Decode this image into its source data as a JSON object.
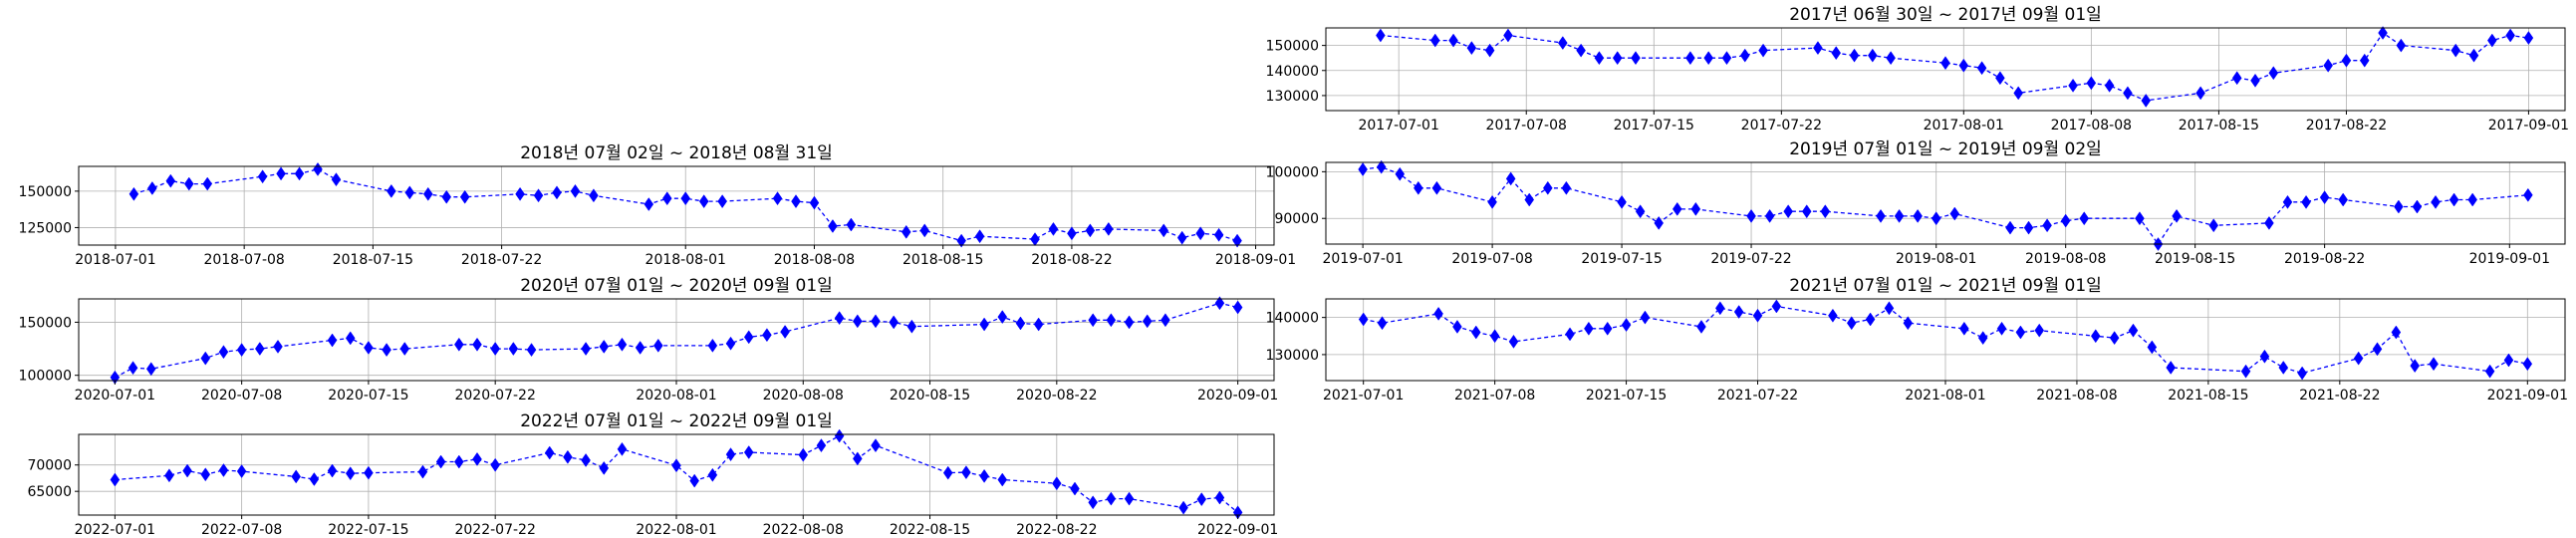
{
  "colors": {
    "series": "#0000ff",
    "grid": "#b0b0b0",
    "frame": "#000000"
  },
  "chart_data": [
    {
      "type": "line",
      "title": "2017년 06월 30일 ~ 2017년 09월 01일",
      "marker": "diamond",
      "grid": true,
      "ylim": [
        124000,
        157000
      ],
      "yticks": [
        130000,
        140000,
        150000
      ],
      "x_range": [
        "2017-06-27",
        "2017-09-03"
      ],
      "xticks": [
        "2017-07-01",
        "2017-07-08",
        "2017-07-15",
        "2017-07-22",
        "2017-08-01",
        "2017-08-08",
        "2017-08-15",
        "2017-08-22",
        "2017-09-01"
      ],
      "x": [
        "2017-06-30",
        "2017-07-03",
        "2017-07-04",
        "2017-07-05",
        "2017-07-06",
        "2017-07-07",
        "2017-07-10",
        "2017-07-11",
        "2017-07-12",
        "2017-07-13",
        "2017-07-14",
        "2017-07-17",
        "2017-07-18",
        "2017-07-19",
        "2017-07-20",
        "2017-07-21",
        "2017-07-24",
        "2017-07-25",
        "2017-07-26",
        "2017-07-27",
        "2017-07-28",
        "2017-07-31",
        "2017-08-01",
        "2017-08-02",
        "2017-08-03",
        "2017-08-04",
        "2017-08-07",
        "2017-08-08",
        "2017-08-09",
        "2017-08-10",
        "2017-08-11",
        "2017-08-14",
        "2017-08-16",
        "2017-08-17",
        "2017-08-18",
        "2017-08-21",
        "2017-08-22",
        "2017-08-23",
        "2017-08-24",
        "2017-08-25",
        "2017-08-28",
        "2017-08-29",
        "2017-08-30",
        "2017-08-31",
        "2017-09-01"
      ],
      "values": [
        154000,
        152000,
        152000,
        149000,
        148000,
        154000,
        151000,
        148000,
        145000,
        145000,
        145000,
        145000,
        145000,
        145000,
        146000,
        148000,
        149000,
        147000,
        146000,
        146000,
        145000,
        143000,
        142000,
        141000,
        137000,
        131000,
        134000,
        135000,
        134000,
        131000,
        128000,
        131000,
        137000,
        136000,
        139000,
        142000,
        144000,
        144000,
        155000,
        150000,
        148000,
        146000,
        152000,
        154000,
        153000
      ]
    },
    {
      "type": "line",
      "title": "2018년 07월 02일 ~ 2018년 08월 31일",
      "marker": "diamond",
      "grid": true,
      "ylim": [
        113000,
        167000
      ],
      "yticks": [
        125000,
        150000
      ],
      "x_range": [
        "2018-06-29",
        "2018-09-02"
      ],
      "xticks": [
        "2018-07-01",
        "2018-07-08",
        "2018-07-15",
        "2018-07-22",
        "2018-08-01",
        "2018-08-08",
        "2018-08-15",
        "2018-08-22",
        "2018-09-01"
      ],
      "x": [
        "2018-07-02",
        "2018-07-03",
        "2018-07-04",
        "2018-07-05",
        "2018-07-06",
        "2018-07-09",
        "2018-07-10",
        "2018-07-11",
        "2018-07-12",
        "2018-07-13",
        "2018-07-16",
        "2018-07-17",
        "2018-07-18",
        "2018-07-19",
        "2018-07-20",
        "2018-07-23",
        "2018-07-24",
        "2018-07-25",
        "2018-07-26",
        "2018-07-27",
        "2018-07-30",
        "2018-07-31",
        "2018-08-01",
        "2018-08-02",
        "2018-08-03",
        "2018-08-06",
        "2018-08-07",
        "2018-08-08",
        "2018-08-09",
        "2018-08-10",
        "2018-08-13",
        "2018-08-14",
        "2018-08-16",
        "2018-08-17",
        "2018-08-20",
        "2018-08-21",
        "2018-08-22",
        "2018-08-23",
        "2018-08-24",
        "2018-08-27",
        "2018-08-28",
        "2018-08-29",
        "2018-08-30",
        "2018-08-31"
      ],
      "values": [
        148000,
        152000,
        157000,
        155000,
        155000,
        160000,
        162000,
        162000,
        165000,
        158000,
        150000,
        149000,
        148000,
        146000,
        146000,
        148000,
        147000,
        149000,
        150000,
        147000,
        141000,
        145000,
        145000,
        143000,
        143000,
        145000,
        143000,
        142000,
        126000,
        127000,
        122000,
        123000,
        116000,
        119000,
        117000,
        124000,
        121000,
        123000,
        124000,
        123000,
        118000,
        121000,
        120000,
        116000
      ]
    },
    {
      "type": "line",
      "title": "2019년 07월 01일 ~ 2019년 09월 02일",
      "marker": "diamond",
      "grid": true,
      "ylim": [
        84500,
        102000
      ],
      "yticks": [
        90000,
        100000
      ],
      "x_range": [
        "2019-06-29",
        "2019-09-04"
      ],
      "xticks": [
        "2019-07-01",
        "2019-07-08",
        "2019-07-15",
        "2019-07-22",
        "2019-08-01",
        "2019-08-08",
        "2019-08-15",
        "2019-08-22",
        "2019-09-01"
      ],
      "x": [
        "2019-07-01",
        "2019-07-02",
        "2019-07-03",
        "2019-07-04",
        "2019-07-05",
        "2019-07-08",
        "2019-07-09",
        "2019-07-10",
        "2019-07-11",
        "2019-07-12",
        "2019-07-15",
        "2019-07-16",
        "2019-07-17",
        "2019-07-18",
        "2019-07-19",
        "2019-07-22",
        "2019-07-23",
        "2019-07-24",
        "2019-07-25",
        "2019-07-26",
        "2019-07-29",
        "2019-07-30",
        "2019-07-31",
        "2019-08-01",
        "2019-08-02",
        "2019-08-05",
        "2019-08-06",
        "2019-08-07",
        "2019-08-08",
        "2019-08-09",
        "2019-08-12",
        "2019-08-13",
        "2019-08-14",
        "2019-08-16",
        "2019-08-19",
        "2019-08-20",
        "2019-08-21",
        "2019-08-22",
        "2019-08-23",
        "2019-08-26",
        "2019-08-27",
        "2019-08-28",
        "2019-08-29",
        "2019-08-30",
        "2019-09-02"
      ],
      "values": [
        100500,
        101000,
        99500,
        96500,
        96500,
        93500,
        98500,
        94000,
        96500,
        96500,
        93500,
        91500,
        89000,
        92000,
        92000,
        90500,
        90500,
        91500,
        91500,
        91500,
        90500,
        90500,
        90500,
        90000,
        91000,
        88000,
        88000,
        88500,
        89500,
        90000,
        90000,
        84500,
        90500,
        88500,
        89000,
        93500,
        93500,
        94500,
        94000,
        92500,
        92500,
        93500,
        94000,
        94000,
        95000
      ]
    },
    {
      "type": "line",
      "title": "2020년 07월 01일 ~ 2020년 09월 01일",
      "marker": "diamond",
      "grid": true,
      "ylim": [
        95000,
        172000
      ],
      "yticks": [
        100000,
        150000
      ],
      "x_range": [
        "2020-06-29",
        "2020-09-03"
      ],
      "xticks": [
        "2020-07-01",
        "2020-07-08",
        "2020-07-15",
        "2020-07-22",
        "2020-08-01",
        "2020-08-08",
        "2020-08-15",
        "2020-08-22",
        "2020-09-01"
      ],
      "x": [
        "2020-07-01",
        "2020-07-02",
        "2020-07-03",
        "2020-07-06",
        "2020-07-07",
        "2020-07-08",
        "2020-07-09",
        "2020-07-10",
        "2020-07-13",
        "2020-07-14",
        "2020-07-15",
        "2020-07-16",
        "2020-07-17",
        "2020-07-20",
        "2020-07-21",
        "2020-07-22",
        "2020-07-23",
        "2020-07-24",
        "2020-07-27",
        "2020-07-28",
        "2020-07-29",
        "2020-07-30",
        "2020-07-31",
        "2020-08-03",
        "2020-08-04",
        "2020-08-05",
        "2020-08-06",
        "2020-08-07",
        "2020-08-10",
        "2020-08-11",
        "2020-08-12",
        "2020-08-13",
        "2020-08-14",
        "2020-08-18",
        "2020-08-19",
        "2020-08-20",
        "2020-08-21",
        "2020-08-24",
        "2020-08-25",
        "2020-08-26",
        "2020-08-27",
        "2020-08-28",
        "2020-08-31",
        "2020-09-01"
      ],
      "values": [
        98000,
        107000,
        106000,
        116000,
        122000,
        124000,
        125000,
        127000,
        133000,
        135000,
        126000,
        124000,
        125000,
        129000,
        129000,
        125000,
        125000,
        124000,
        125000,
        127000,
        129000,
        126000,
        128000,
        128000,
        130000,
        136000,
        138000,
        141000,
        154000,
        151000,
        151000,
        150000,
        146000,
        148000,
        155000,
        149000,
        148000,
        152000,
        152000,
        150000,
        151000,
        152000,
        168000,
        164000
      ]
    },
    {
      "type": "line",
      "title": "2021년 07월 01일 ~ 2021년 09월 01일",
      "marker": "diamond",
      "grid": true,
      "ylim": [
        123000,
        145000
      ],
      "yticks": [
        130000,
        140000
      ],
      "x_range": [
        "2021-06-29",
        "2021-09-03"
      ],
      "xticks": [
        "2021-07-01",
        "2021-07-08",
        "2021-07-15",
        "2021-07-22",
        "2021-08-01",
        "2021-08-08",
        "2021-08-15",
        "2021-08-22",
        "2021-09-01"
      ],
      "x": [
        "2021-07-01",
        "2021-07-02",
        "2021-07-05",
        "2021-07-06",
        "2021-07-07",
        "2021-07-08",
        "2021-07-09",
        "2021-07-12",
        "2021-07-13",
        "2021-07-14",
        "2021-07-15",
        "2021-07-16",
        "2021-07-19",
        "2021-07-20",
        "2021-07-21",
        "2021-07-22",
        "2021-07-23",
        "2021-07-26",
        "2021-07-27",
        "2021-07-28",
        "2021-07-29",
        "2021-07-30",
        "2021-08-02",
        "2021-08-03",
        "2021-08-04",
        "2021-08-05",
        "2021-08-06",
        "2021-08-09",
        "2021-08-10",
        "2021-08-11",
        "2021-08-12",
        "2021-08-13",
        "2021-08-17",
        "2021-08-18",
        "2021-08-19",
        "2021-08-20",
        "2021-08-23",
        "2021-08-24",
        "2021-08-25",
        "2021-08-26",
        "2021-08-27",
        "2021-08-30",
        "2021-08-31",
        "2021-09-01"
      ],
      "values": [
        139500,
        138500,
        141000,
        137500,
        136000,
        135000,
        133500,
        135500,
        137000,
        137000,
        138000,
        140000,
        137500,
        142500,
        141500,
        140500,
        143000,
        140500,
        138500,
        139500,
        142500,
        138500,
        137000,
        134500,
        137000,
        136000,
        136500,
        135000,
        134500,
        136500,
        132000,
        126500,
        125500,
        129500,
        126500,
        125000,
        129000,
        131500,
        136000,
        127000,
        127500,
        125500,
        128500,
        127500
      ]
    },
    {
      "type": "line",
      "title": "2022년 07월 01일 ~ 2022년 09월 01일",
      "marker": "diamond",
      "grid": true,
      "ylim": [
        60500,
        75800
      ],
      "yticks": [
        65000,
        70000
      ],
      "x_range": [
        "2022-06-29",
        "2022-09-03"
      ],
      "xticks": [
        "2022-07-01",
        "2022-07-08",
        "2022-07-15",
        "2022-07-22",
        "2022-08-01",
        "2022-08-08",
        "2022-08-15",
        "2022-08-22",
        "2022-09-01"
      ],
      "x": [
        "2022-07-01",
        "2022-07-04",
        "2022-07-05",
        "2022-07-06",
        "2022-07-07",
        "2022-07-08",
        "2022-07-11",
        "2022-07-12",
        "2022-07-13",
        "2022-07-14",
        "2022-07-15",
        "2022-07-18",
        "2022-07-19",
        "2022-07-20",
        "2022-07-21",
        "2022-07-22",
        "2022-07-25",
        "2022-07-26",
        "2022-07-27",
        "2022-07-28",
        "2022-07-29",
        "2022-08-01",
        "2022-08-02",
        "2022-08-03",
        "2022-08-04",
        "2022-08-05",
        "2022-08-08",
        "2022-08-09",
        "2022-08-10",
        "2022-08-11",
        "2022-08-12",
        "2022-08-16",
        "2022-08-17",
        "2022-08-18",
        "2022-08-19",
        "2022-08-22",
        "2022-08-23",
        "2022-08-24",
        "2022-08-25",
        "2022-08-26",
        "2022-08-29",
        "2022-08-30",
        "2022-08-31",
        "2022-09-01"
      ],
      "values": [
        67200,
        68000,
        68900,
        68200,
        69000,
        68800,
        67800,
        67300,
        68900,
        68400,
        68500,
        68700,
        70600,
        70600,
        71100,
        70000,
        72300,
        71500,
        70900,
        69400,
        73000,
        69900,
        67000,
        68100,
        72000,
        72400,
        71900,
        73700,
        75500,
        71200,
        73700,
        68500,
        68600,
        67900,
        67200,
        66500,
        65500,
        62900,
        63600,
        63600,
        61900,
        63500,
        63800,
        61000
      ]
    }
  ]
}
